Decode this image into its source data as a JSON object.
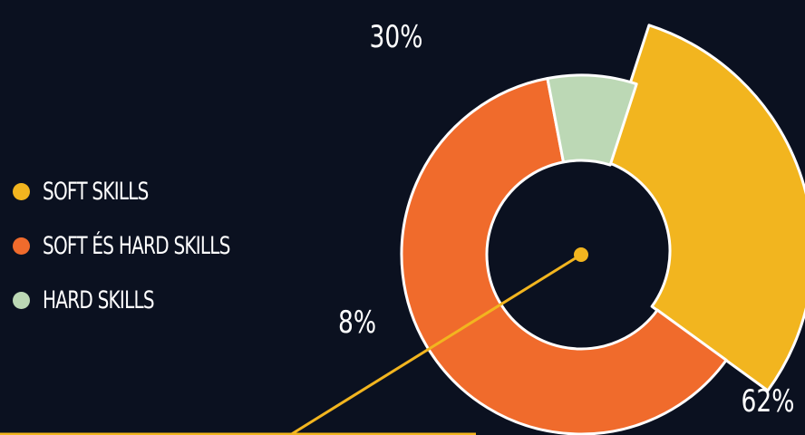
{
  "chart_data": {
    "type": "pie",
    "style": "donut",
    "categories": [
      "SOFT SKILLS",
      "SOFT ÉS HARD SKILLS",
      "HARD SKILLS"
    ],
    "values": [
      30,
      62,
      8
    ],
    "value_labels": [
      "30%",
      "62%",
      "8%"
    ],
    "colors": [
      "#f2b51f",
      "#f06b2c",
      "#bcd8b5"
    ],
    "exploded": "SOFT SKILLS",
    "legend_position": "left",
    "title": ""
  },
  "colors": {
    "background": "#0b1120",
    "pointer_line": "#f2b51f"
  }
}
